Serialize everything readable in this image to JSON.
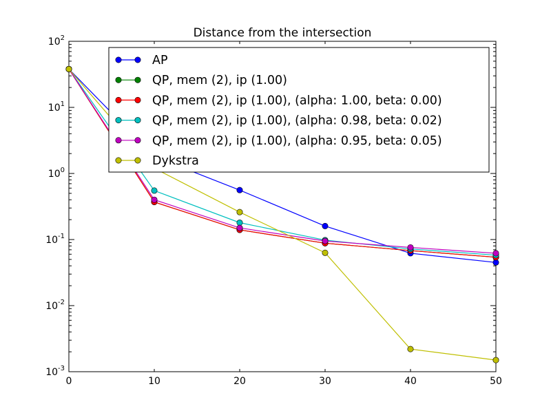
{
  "chart_data": {
    "type": "line",
    "title": "Distance from the intersection",
    "xlabel": "",
    "ylabel": "",
    "x": [
      0,
      10,
      20,
      30,
      40,
      50
    ],
    "xlim": [
      0,
      50
    ],
    "xticks": [
      "0",
      "10",
      "20",
      "30",
      "40",
      "50"
    ],
    "ylim": [
      0.001,
      100
    ],
    "yscale": "log",
    "yticks": [
      {
        "base": "10",
        "exp": "-3",
        "value": 0.001
      },
      {
        "base": "10",
        "exp": "-2",
        "value": 0.01
      },
      {
        "base": "10",
        "exp": "-1",
        "value": 0.1
      },
      {
        "base": "10",
        "exp": "0",
        "value": 1
      },
      {
        "base": "10",
        "exp": "1",
        "value": 10
      },
      {
        "base": "10",
        "exp": "2",
        "value": 100
      }
    ],
    "grid": false,
    "legend_position": "top-right",
    "series": [
      {
        "name": "AP",
        "color": "#0000ff",
        "values": [
          38,
          1.8,
          0.56,
          0.16,
          0.062,
          0.045
        ]
      },
      {
        "name": "QP, mem (2), ip (1.00)",
        "color": "#008000",
        "values": [
          38,
          0.37,
          0.14,
          0.088,
          0.068,
          0.054
        ]
      },
      {
        "name": "QP, mem (2), ip (1.00), (alpha: 1.00, beta: 0.00)",
        "color": "#ff0000",
        "values": [
          38,
          0.37,
          0.14,
          0.088,
          0.068,
          0.054
        ]
      },
      {
        "name": "QP, mem (2), ip (1.00), (alpha: 0.98, beta: 0.02)",
        "color": "#00bfbf",
        "values": [
          38,
          0.55,
          0.18,
          0.098,
          0.072,
          0.058
        ]
      },
      {
        "name": "QP, mem (2), ip (1.00), (alpha: 0.95, beta: 0.05)",
        "color": "#bf00bf",
        "values": [
          38,
          0.4,
          0.15,
          0.095,
          0.076,
          0.062
        ]
      },
      {
        "name": "Dykstra",
        "color": "#bfbf00",
        "values": [
          38,
          1.2,
          0.26,
          0.063,
          0.0022,
          0.0015
        ]
      }
    ]
  }
}
